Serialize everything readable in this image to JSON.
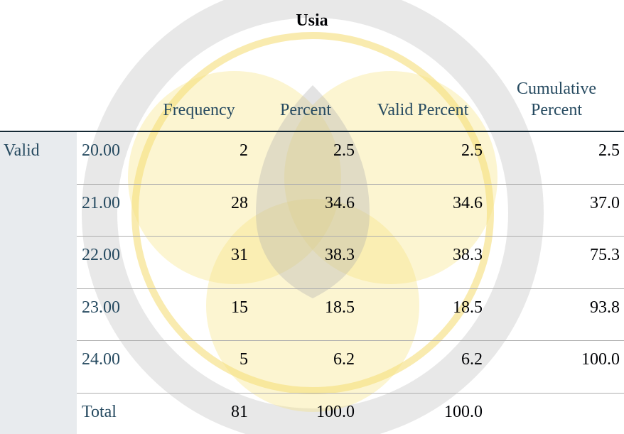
{
  "title": "Usia",
  "table": {
    "columns": [
      "Frequency",
      "Percent",
      "Valid Percent",
      "Cumulative Percent"
    ],
    "group": "Valid",
    "rows": [
      {
        "label": "20.00",
        "cells": [
          "2",
          "2.5",
          "2.5",
          "2.5"
        ]
      },
      {
        "label": "21.00",
        "cells": [
          "28",
          "34.6",
          "34.6",
          "37.0"
        ]
      },
      {
        "label": "22.00",
        "cells": [
          "31",
          "38.3",
          "38.3",
          "75.3"
        ]
      },
      {
        "label": "23.00",
        "cells": [
          "15",
          "18.5",
          "18.5",
          "93.8"
        ]
      },
      {
        "label": "24.00",
        "cells": [
          "5",
          "6.2",
          "6.2",
          "100.0"
        ]
      },
      {
        "label": "Total",
        "cells": [
          "81",
          "100.0",
          "100.0",
          null
        ]
      }
    ]
  }
}
